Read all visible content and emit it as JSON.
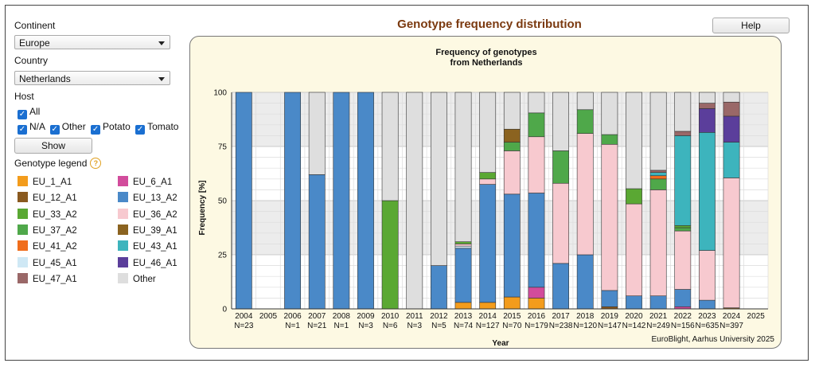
{
  "filters": {
    "continent_label": "Continent",
    "continent_value": "Europe",
    "country_label": "Country",
    "country_value": "Netherlands",
    "host_label": "Host",
    "host_all": "All",
    "host_na": "N/A",
    "host_other": "Other",
    "host_potato": "Potato",
    "host_tomato": "Tomato",
    "show_button": "Show"
  },
  "legend": {
    "title": "Genotype legend",
    "help_glyph": "?",
    "items": [
      {
        "name": "EU_1_A1",
        "color": "#f39c1c"
      },
      {
        "name": "EU_6_A1",
        "color": "#d24c9c"
      },
      {
        "name": "EU_12_A1",
        "color": "#8a5a1f"
      },
      {
        "name": "EU_13_A2",
        "color": "#4a89c8"
      },
      {
        "name": "EU_33_A2",
        "color": "#5aa833"
      },
      {
        "name": "EU_36_A2",
        "color": "#f7c9cf"
      },
      {
        "name": "EU_37_A2",
        "color": "#4fa84a"
      },
      {
        "name": "EU_39_A1",
        "color": "#8b6320"
      },
      {
        "name": "EU_41_A2",
        "color": "#f06d1c"
      },
      {
        "name": "EU_43_A1",
        "color": "#3db4bd"
      },
      {
        "name": "EU_45_A1",
        "color": "#cfe8f5"
      },
      {
        "name": "EU_46_A1",
        "color": "#5b3e9b"
      },
      {
        "name": "EU_47_A1",
        "color": "#9a6868"
      },
      {
        "name": "Other",
        "color": "#dedede"
      }
    ]
  },
  "header": {
    "title": "Genotype frequency distribution",
    "help_button": "Help"
  },
  "chart_data": {
    "type": "bar",
    "stacked": true,
    "title": "Frequency of genotypes",
    "subtitle": "from Netherlands",
    "xlabel": "Year",
    "ylabel": "Frequency [%]",
    "ylim": [
      0,
      100
    ],
    "yticks": [
      0,
      25,
      50,
      75,
      100
    ],
    "credit": "EuroBlight, Aarhus University 2025",
    "categories": [
      "2004",
      "2005",
      "2006",
      "2007",
      "2008",
      "2009",
      "2010",
      "2011",
      "2012",
      "2013",
      "2014",
      "2015",
      "2016",
      "2017",
      "2018",
      "2019",
      "2020",
      "2021",
      "2022",
      "2023",
      "2024",
      "2025"
    ],
    "n_labels": [
      "N=23",
      "",
      "N=1",
      "N=21",
      "N=1",
      "N=3",
      "N=6",
      "N=3",
      "N=5",
      "N=74",
      "N=127",
      "N=70",
      "N=179",
      "N=238",
      "N=120",
      "N=147",
      "N=142",
      "N=249",
      "N=156",
      "N=635",
      "N=397",
      ""
    ],
    "stack_order": [
      "EU_1_A1",
      "EU_6_A1",
      "EU_12_A1",
      "EU_13_A2",
      "EU_45_A1",
      "EU_36_A2",
      "EU_37_A2",
      "EU_33_A2",
      "EU_41_A2",
      "EU_43_A1",
      "EU_39_A1",
      "EU_46_A1",
      "EU_47_A1",
      "Other"
    ],
    "series": [
      {
        "name": "EU_1_A1",
        "values": [
          0,
          0,
          0,
          0,
          0,
          0,
          0,
          0,
          0,
          3,
          3,
          5.5,
          5,
          0,
          0,
          0,
          0,
          0,
          0,
          0,
          0,
          0
        ]
      },
      {
        "name": "EU_6_A1",
        "values": [
          0,
          0,
          0,
          0,
          0,
          0,
          0,
          0,
          0,
          0,
          0,
          0,
          5,
          0,
          0,
          0,
          0,
          0,
          1,
          0,
          0,
          0
        ]
      },
      {
        "name": "EU_12_A1",
        "values": [
          0,
          0,
          0,
          0,
          0,
          0,
          0,
          0,
          0,
          0,
          0,
          0,
          0,
          0,
          0,
          1,
          0,
          0,
          0,
          0,
          0.5,
          0
        ]
      },
      {
        "name": "EU_13_A2",
        "values": [
          100,
          0,
          100,
          62,
          100,
          100,
          0,
          0,
          20,
          25,
          54.5,
          47.5,
          43.5,
          21,
          25,
          7.5,
          6,
          6,
          8,
          4,
          0,
          0
        ]
      },
      {
        "name": "EU_45_A1",
        "values": [
          0,
          0,
          0,
          0,
          0,
          0,
          0,
          0,
          0,
          1,
          0,
          0,
          0,
          0,
          0,
          0,
          0,
          0,
          0,
          0,
          0,
          0
        ]
      },
      {
        "name": "EU_36_A2",
        "values": [
          0,
          0,
          0,
          0,
          0,
          0,
          0,
          0,
          0,
          1,
          2.5,
          20,
          26,
          37,
          56,
          67.5,
          42.5,
          49,
          27,
          23,
          60,
          0
        ]
      },
      {
        "name": "EU_37_A2",
        "values": [
          0,
          0,
          0,
          0,
          0,
          0,
          0,
          0,
          0,
          0,
          0,
          4,
          11,
          15,
          11,
          4.5,
          0,
          5,
          1.5,
          0,
          0,
          0
        ]
      },
      {
        "name": "EU_33_A2",
        "values": [
          0,
          0,
          0,
          0,
          0,
          0,
          50,
          0,
          0,
          1,
          3,
          0,
          0,
          0,
          0,
          0,
          7,
          0,
          1,
          0,
          0,
          0
        ]
      },
      {
        "name": "EU_41_A2",
        "values": [
          0,
          0,
          0,
          0,
          0,
          0,
          0,
          0,
          0,
          0,
          0,
          0,
          0,
          0,
          0,
          0,
          0,
          1.5,
          0,
          0,
          0,
          0
        ]
      },
      {
        "name": "EU_43_A1",
        "values": [
          0,
          0,
          0,
          0,
          0,
          0,
          0,
          0,
          0,
          0,
          0,
          0,
          0,
          0,
          0,
          0,
          0,
          1.5,
          41.5,
          54.5,
          16.5,
          0
        ]
      },
      {
        "name": "EU_39_A1",
        "values": [
          0,
          0,
          0,
          0,
          0,
          0,
          0,
          0,
          0,
          0,
          0,
          6,
          0,
          0,
          0,
          0,
          0,
          0,
          0,
          0,
          0,
          0
        ]
      },
      {
        "name": "EU_46_A1",
        "values": [
          0,
          0,
          0,
          0,
          0,
          0,
          0,
          0,
          0,
          0,
          0,
          0,
          0,
          0,
          0,
          0,
          0,
          0,
          0,
          11,
          12,
          0
        ]
      },
      {
        "name": "EU_47_A1",
        "values": [
          0,
          0,
          0,
          0,
          0,
          0,
          0,
          0,
          0,
          0,
          0,
          0,
          0,
          0,
          0,
          0,
          0,
          1,
          2,
          2.5,
          6.5,
          0
        ]
      },
      {
        "name": "Other",
        "values": [
          0,
          0,
          0,
          38,
          0,
          0,
          50,
          100,
          80,
          69,
          37,
          17,
          9.5,
          27,
          8,
          19.5,
          44.5,
          36,
          18,
          5,
          4.5,
          0
        ]
      }
    ]
  }
}
